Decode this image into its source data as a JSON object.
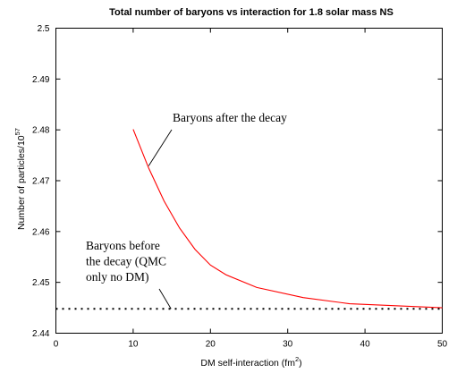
{
  "chart_data": {
    "type": "line",
    "title": "Total number of baryons vs interaction for 1.8 solar mass NS",
    "xlabel": "DM self-interaction (fm",
    "xlabel_sup": "2",
    "xlabel_suffix": ")",
    "ylabel": "Number of particles/10",
    "ylabel_sup": "57",
    "xlim": [
      0,
      50
    ],
    "ylim": [
      2.44,
      2.5
    ],
    "x_ticks": [
      "0",
      "10",
      "20",
      "30",
      "40",
      "50"
    ],
    "y_ticks": [
      "2.44",
      "2.45",
      "2.46",
      "2.47",
      "2.48",
      "2.49",
      "2.5"
    ],
    "grid": false,
    "series": [
      {
        "color": "#ff0000",
        "style": "solid",
        "x": [
          10,
          12,
          14,
          16,
          18,
          20,
          22,
          26,
          32,
          38,
          44,
          50
        ],
        "y": [
          2.4801,
          2.4725,
          2.466,
          2.4607,
          2.4565,
          2.4534,
          2.4515,
          2.449,
          2.447,
          2.4458,
          2.4454,
          2.445
        ]
      },
      {
        "color": "#000000",
        "style": "dotted",
        "x": [
          0,
          50
        ],
        "y": [
          2.4448,
          2.4448
        ]
      }
    ],
    "annotations": [
      {
        "id": "after",
        "lines": [
          "Baryons after the decay"
        ],
        "points_to": [
          12,
          2.4729
        ]
      },
      {
        "id": "before",
        "lines": [
          "Baryons before",
          "the decay (QMC",
          "only no DM)"
        ],
        "points_to": [
          14.9,
          2.4448
        ]
      }
    ]
  }
}
